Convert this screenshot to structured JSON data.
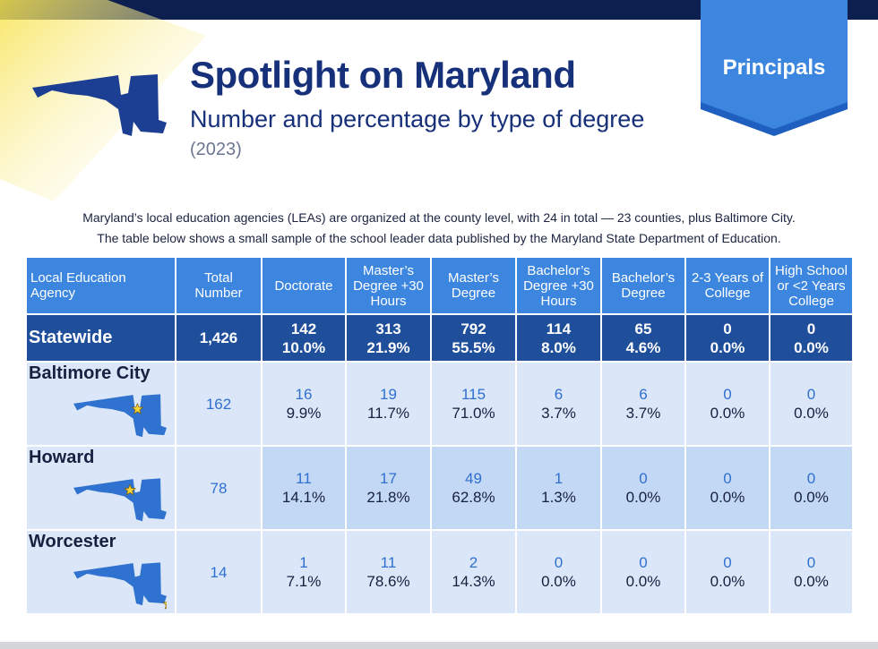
{
  "header": {
    "title": "Spotlight on Maryland",
    "subtitle": "Number and percentage by type of degree",
    "year": "(2023)",
    "badge": "Principals"
  },
  "intro": [
    "Maryland’s local education agencies (LEAs) are organized at the county level, with 24 in total — 23 counties, plus Baltimore City.",
    "The table below shows a small sample of the school leader data published by the Maryland State Department of Education."
  ],
  "table": {
    "header": [
      "Local Education Agency",
      "Total Number",
      "Doctorate",
      "Master’s Degree +30 Hours",
      "Master’s Degree",
      "Bachelor’s Degree +30 Hours",
      "Bachelor’s Degree",
      "2-3 Years of College",
      "High School or <2 Years College"
    ],
    "rows": [
      {
        "name": "Statewide",
        "total": "1,426",
        "cells": [
          {
            "count": "142",
            "pct": "10.0%"
          },
          {
            "count": "313",
            "pct": "21.9%"
          },
          {
            "count": "792",
            "pct": "55.5%"
          },
          {
            "count": "114",
            "pct": "8.0%"
          },
          {
            "count": "65",
            "pct": "4.6%"
          },
          {
            "count": "0",
            "pct": "0.0%"
          },
          {
            "count": "0",
            "pct": "0.0%"
          }
        ]
      },
      {
        "name": "Baltimore City",
        "total": "162",
        "cells": [
          {
            "count": "16",
            "pct": "9.9%"
          },
          {
            "count": "19",
            "pct": "11.7%"
          },
          {
            "count": "115",
            "pct": "71.0%"
          },
          {
            "count": "6",
            "pct": "3.7%"
          },
          {
            "count": "6",
            "pct": "3.7%"
          },
          {
            "count": "0",
            "pct": "0.0%"
          },
          {
            "count": "0",
            "pct": "0.0%"
          }
        ]
      },
      {
        "name": "Howard",
        "total": "78",
        "cells": [
          {
            "count": "11",
            "pct": "14.1%"
          },
          {
            "count": "17",
            "pct": "21.8%"
          },
          {
            "count": "49",
            "pct": "62.8%"
          },
          {
            "count": "1",
            "pct": "1.3%"
          },
          {
            "count": "0",
            "pct": "0.0%"
          },
          {
            "count": "0",
            "pct": "0.0%"
          },
          {
            "count": "0",
            "pct": "0.0%"
          }
        ]
      },
      {
        "name": "Worcester",
        "total": "14",
        "cells": [
          {
            "count": "1",
            "pct": "7.1%"
          },
          {
            "count": "11",
            "pct": "78.6%"
          },
          {
            "count": "2",
            "pct": "14.3%"
          },
          {
            "count": "0",
            "pct": "0.0%"
          },
          {
            "count": "0",
            "pct": "0.0%"
          },
          {
            "count": "0",
            "pct": "0.0%"
          },
          {
            "count": "0",
            "pct": "0.0%"
          }
        ]
      }
    ]
  }
}
